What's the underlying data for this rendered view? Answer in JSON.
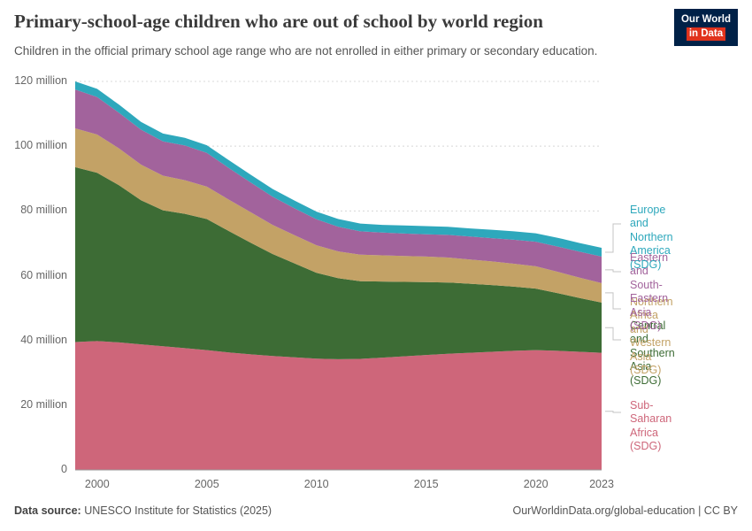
{
  "header": {
    "title": "Primary-school-age children who are out of school by world region",
    "subtitle": "Children in the official primary school age range who are not enrolled in either primary or secondary education.",
    "logo": {
      "line1": "Our World",
      "line2": "in Data"
    }
  },
  "footer": {
    "source_label": "Data source:",
    "source_value": "UNESCO Institute for Statistics (2025)",
    "right_text": "OurWorldinData.org/global-education | CC BY"
  },
  "chart_data": {
    "type": "area",
    "stacked": true,
    "title": "Primary-school-age children who are out of school by world region",
    "xlabel": "",
    "ylabel": "",
    "ylim": [
      0,
      120
    ],
    "grid": "horizontal-dashed",
    "legend_position": "right",
    "x": [
      1999,
      2000,
      2001,
      2002,
      2003,
      2004,
      2005,
      2006,
      2007,
      2008,
      2009,
      2010,
      2011,
      2012,
      2013,
      2014,
      2015,
      2016,
      2017,
      2018,
      2019,
      2020,
      2021,
      2022,
      2023
    ],
    "x_ticks": [
      2000,
      2005,
      2010,
      2015,
      2020,
      2023
    ],
    "y_ticks": [
      {
        "value": 0,
        "label": "0"
      },
      {
        "value": 20,
        "label": "20 million"
      },
      {
        "value": 40,
        "label": "40 million"
      },
      {
        "value": 60,
        "label": "60 million"
      },
      {
        "value": 80,
        "label": "80 million"
      },
      {
        "value": 100,
        "label": "100 million"
      },
      {
        "value": 120,
        "label": "120 million"
      }
    ],
    "unit": "million",
    "series": [
      {
        "name": "Sub-Saharan Africa (SDG)",
        "label_lines": [
          "Sub-Saharan Africa",
          "(SDG)"
        ],
        "color": "#ce667a",
        "values": [
          39.5,
          39.8,
          39.4,
          38.8,
          38.2,
          37.6,
          37.0,
          36.3,
          35.7,
          35.2,
          34.8,
          34.4,
          34.2,
          34.3,
          34.7,
          35.1,
          35.5,
          35.9,
          36.2,
          36.5,
          36.8,
          37.0,
          36.8,
          36.5,
          36.2
        ]
      },
      {
        "name": "Central and Southern Asia (SDG)",
        "label_lines": [
          "Central and",
          "Southern Asia",
          "(SDG)"
        ],
        "color": "#3d6c35",
        "values": [
          54.0,
          52.0,
          48.5,
          44.5,
          42.0,
          41.5,
          40.5,
          37.5,
          34.5,
          31.5,
          29.0,
          26.5,
          25.0,
          24.0,
          23.5,
          23.0,
          22.5,
          22.0,
          21.3,
          20.6,
          19.8,
          19.0,
          17.8,
          16.6,
          15.5
        ]
      },
      {
        "name": "Northern Africa and Western Asia (SDG)",
        "label_lines": [
          "Northern Africa and",
          "Western Asia (SDG)"
        ],
        "color": "#c3a266",
        "values": [
          12.0,
          11.8,
          11.4,
          11.0,
          10.7,
          10.4,
          10.0,
          9.7,
          9.4,
          9.0,
          8.7,
          8.5,
          8.3,
          8.2,
          8.1,
          8.0,
          7.9,
          7.7,
          7.5,
          7.3,
          7.1,
          6.9,
          6.6,
          6.3,
          6.0
        ]
      },
      {
        "name": "Eastern and South-Eastern Asia (SDG)",
        "label_lines": [
          "Eastern and",
          "South-Eastern Asia",
          "(SDG)"
        ],
        "color": "#a2639c",
        "values": [
          12.0,
          11.6,
          11.0,
          10.8,
          10.6,
          10.7,
          10.4,
          9.8,
          9.2,
          8.7,
          8.3,
          8.0,
          7.6,
          7.2,
          7.0,
          6.9,
          6.9,
          7.0,
          7.1,
          7.2,
          7.4,
          7.6,
          7.8,
          8.0,
          8.2
        ]
      },
      {
        "name": "Europe and Northern America (SDG)",
        "label_lines": [
          "Europe and",
          "Northern America",
          "(SDG)"
        ],
        "color": "#2ea8bc",
        "values": [
          2.5,
          2.5,
          2.5,
          2.4,
          2.4,
          2.4,
          2.4,
          2.4,
          2.4,
          2.4,
          2.4,
          2.4,
          2.4,
          2.4,
          2.4,
          2.5,
          2.5,
          2.5,
          2.5,
          2.6,
          2.6,
          2.6,
          2.7,
          2.7,
          2.7
        ]
      }
    ]
  }
}
